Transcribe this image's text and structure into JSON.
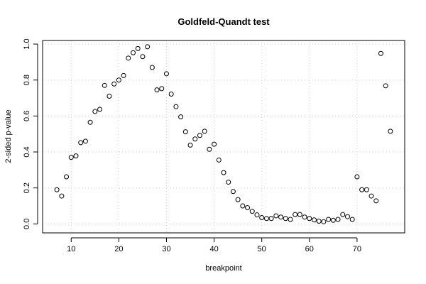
{
  "chart_data": {
    "type": "scatter",
    "title": "Goldfeld-Quandt test",
    "xlabel": "breakpoint",
    "ylabel": "2-sided p-value",
    "xlim": [
      4,
      80
    ],
    "ylim": [
      -0.05,
      1.02
    ],
    "xticks": [
      10,
      20,
      30,
      40,
      50,
      60,
      70
    ],
    "yticks": [
      0.0,
      0.2,
      0.4,
      0.6,
      0.8,
      1.0
    ],
    "xtick_labels": [
      "10",
      "20",
      "30",
      "40",
      "50",
      "60",
      "70"
    ],
    "ytick_labels": [
      "0.0",
      "0.2",
      "0.4",
      "0.6",
      "0.8",
      "1.0"
    ],
    "grid": true,
    "marker": "open-circle",
    "x": [
      7,
      8,
      9,
      10,
      11,
      12,
      13,
      14,
      15,
      16,
      17,
      18,
      19,
      20,
      21,
      22,
      23,
      24,
      25,
      26,
      27,
      28,
      29,
      30,
      31,
      32,
      33,
      34,
      35,
      36,
      37,
      38,
      39,
      40,
      41,
      42,
      43,
      44,
      45,
      46,
      47,
      48,
      49,
      50,
      51,
      52,
      53,
      54,
      55,
      56,
      57,
      58,
      59,
      60,
      61,
      62,
      63,
      64,
      65,
      66,
      67,
      68,
      69,
      70,
      71,
      72,
      73,
      74,
      75,
      76,
      77
    ],
    "y": [
      0.19,
      0.155,
      0.262,
      0.37,
      0.378,
      0.452,
      0.46,
      0.565,
      0.625,
      0.637,
      0.77,
      0.71,
      0.778,
      0.8,
      0.825,
      0.922,
      0.952,
      0.975,
      0.93,
      0.985,
      0.87,
      0.745,
      0.752,
      0.835,
      0.722,
      0.652,
      0.595,
      0.512,
      0.438,
      0.472,
      0.492,
      0.515,
      0.415,
      0.443,
      0.355,
      0.285,
      0.232,
      0.18,
      0.135,
      0.1,
      0.09,
      0.07,
      0.05,
      0.035,
      0.03,
      0.03,
      0.045,
      0.038,
      0.03,
      0.025,
      0.052,
      0.052,
      0.038,
      0.03,
      0.022,
      0.015,
      0.012,
      0.025,
      0.02,
      0.025,
      0.052,
      0.04,
      0.025,
      0.262,
      0.19,
      0.19,
      0.155,
      0.128,
      0.948,
      0.768,
      0.515
    ]
  }
}
